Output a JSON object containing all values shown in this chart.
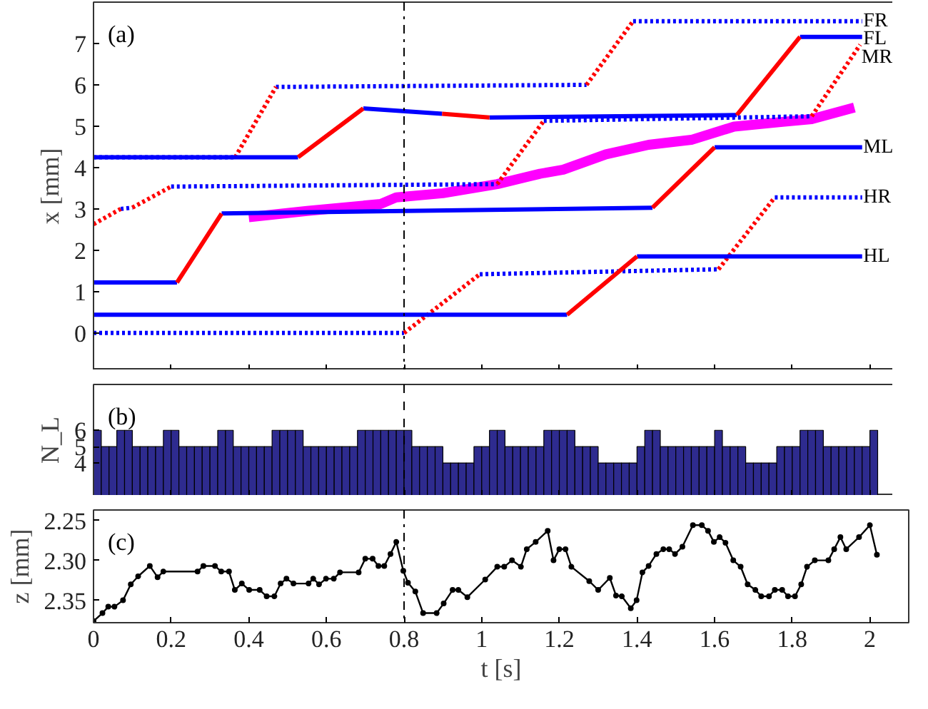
{
  "chart_data": [
    {
      "type": "line",
      "ylabel": "x [mm]",
      "annotations": [
        "(a)"
      ],
      "xlim": [
        0,
        2.1
      ],
      "ylim": [
        -0.9,
        8
      ],
      "xticks": [
        0,
        0.2,
        0.4,
        0.6,
        0.8,
        1,
        1.2,
        1.4,
        1.6,
        1.8,
        2
      ],
      "yticks": [
        0,
        1,
        2,
        3,
        4,
        5,
        6,
        7
      ],
      "tick_labels": "y",
      "ref_lines": [
        {
          "axis": "x",
          "value": 0.8,
          "color": "#000000",
          "line_style": "dashdot"
        }
      ],
      "series": [
        {
          "name": "FR",
          "color": "#0000ff",
          "line_style": "dotted",
          "x": [
            0,
            0.365,
            0.42,
            0.47,
            1.27,
            1.33,
            1.39,
            1.98
          ],
          "values": [
            4.25,
            4.25,
            null,
            5.95,
            6.0,
            null,
            7.54,
            7.54
          ]
        },
        {
          "color": "#ff0000",
          "line_style": "dotted",
          "x": [
            0.365,
            0.47,
            0.8,
            1.27,
            1.39
          ],
          "values": [
            4.25,
            5.95,
            null,
            6.0,
            7.54
          ]
        },
        {
          "name": "FL",
          "color": "#0000ff",
          "line_style": "solid",
          "x": [
            0,
            0.527,
            0.6,
            0.695,
            0.898,
            0.95,
            1.02,
            1.657,
            1.7,
            1.82,
            1.98
          ],
          "values": [
            4.25,
            4.25,
            null,
            5.43,
            5.3,
            null,
            5.21,
            5.27,
            null,
            7.16,
            7.16
          ]
        },
        {
          "color": "#ff0000",
          "line_style": "solid",
          "x": [
            0.527,
            0.695,
            0.8,
            0.898,
            1.02,
            1.3,
            1.657,
            1.82
          ],
          "values": [
            4.25,
            5.43,
            null,
            5.3,
            5.21,
            null,
            5.27,
            7.16
          ]
        },
        {
          "color": "#0000ff",
          "line_style": "dotted",
          "x": [
            0.07,
            0.1,
            0.15,
            0.2,
            1.04,
            1.1,
            1.16,
            1.85
          ],
          "values": [
            3.0,
            3.03,
            null,
            3.54,
            3.6,
            null,
            5.13,
            5.24
          ]
        },
        {
          "name": "MR",
          "color": "#ff0000",
          "line_style": "dotted",
          "x": [
            0,
            0.07,
            0.08,
            0.1,
            0.2,
            0.6,
            1.04,
            1.16,
            1.5,
            1.85,
            1.975
          ],
          "values": [
            2.63,
            3.0,
            null,
            3.03,
            3.54,
            null,
            3.6,
            5.13,
            null,
            5.24,
            6.97
          ]
        },
        {
          "name": "ML",
          "color": "#0000ff",
          "line_style": "solid",
          "x": [
            0,
            0.215,
            0.27,
            0.33,
            1.44,
            1.5,
            1.6,
            1.98
          ],
          "values": [
            1.22,
            1.22,
            null,
            2.89,
            3.03,
            null,
            4.49,
            4.49
          ]
        },
        {
          "color": "#ff0000",
          "line_style": "solid",
          "x": [
            0.215,
            0.33,
            0.9,
            1.44,
            1.6
          ],
          "values": [
            1.22,
            2.89,
            null,
            3.03,
            4.49
          ]
        },
        {
          "name": "HR",
          "color": "#0000ff",
          "line_style": "dotted",
          "x": [
            0,
            0.8,
            0.9,
            0.995,
            1.61,
            1.7,
            1.755,
            1.98
          ],
          "values": [
            0,
            0,
            null,
            1.42,
            1.54,
            null,
            3.28,
            3.28
          ]
        },
        {
          "color": "#ff0000",
          "line_style": "dotted",
          "x": [
            0.8,
            0.995,
            1.3,
            1.61,
            1.755
          ],
          "values": [
            0,
            1.42,
            null,
            1.54,
            3.28
          ]
        },
        {
          "name": "HL",
          "color": "#0000ff",
          "line_style": "solid",
          "x": [
            0,
            1.22,
            1.3,
            1.4,
            1.98
          ],
          "values": [
            0.44,
            0.44,
            null,
            1.85,
            1.85
          ]
        },
        {
          "color": "#ff0000",
          "line_style": "solid",
          "x": [
            1.22,
            1.4
          ],
          "values": [
            0.44,
            1.85
          ]
        },
        {
          "color": "#ff00ff",
          "line_style": "solid",
          "x": [
            0.4,
            0.55,
            0.74,
            0.78,
            0.9,
            1.04,
            1.15,
            1.21,
            1.32,
            1.43,
            1.54,
            1.65,
            1.77,
            1.85,
            1.96
          ],
          "values": [
            2.8,
            2.95,
            3.12,
            3.28,
            3.38,
            3.6,
            3.85,
            3.95,
            4.32,
            4.55,
            4.67,
            4.99,
            5.1,
            5.17,
            5.45
          ]
        }
      ]
    },
    {
      "type": "histogram",
      "ylabel": "N_L",
      "annotations": [
        "(b)"
      ],
      "xlim": [
        0,
        2.1
      ],
      "ylim": [
        2,
        8.8
      ],
      "xticks": [
        0,
        0.2,
        0.4,
        0.6,
        0.8,
        1,
        1.2,
        1.4,
        1.6,
        1.8,
        2
      ],
      "yticks": [
        4,
        5,
        6
      ],
      "tick_labels": "y",
      "color": "#2e2b8f",
      "ref_lines": [
        {
          "axis": "x",
          "value": 0.8,
          "color": "#000000",
          "line_style": "dashed"
        }
      ],
      "bins": [
        0,
        0.02,
        0.04,
        0.06,
        0.08,
        0.1,
        0.12,
        0.14,
        0.16,
        0.18,
        0.2,
        0.22,
        0.24,
        0.26,
        0.28,
        0.3,
        0.32,
        0.34,
        0.36,
        0.38,
        0.4,
        0.42,
        0.44,
        0.46,
        0.48,
        0.5,
        0.52,
        0.54,
        0.56,
        0.58,
        0.6,
        0.62,
        0.64,
        0.66,
        0.68,
        0.7,
        0.72,
        0.74,
        0.76,
        0.78,
        0.8,
        0.82,
        0.84,
        0.86,
        0.88,
        0.9,
        0.92,
        0.94,
        0.96,
        0.98,
        1.0,
        1.02,
        1.04,
        1.06,
        1.08,
        1.1,
        1.12,
        1.14,
        1.16,
        1.18,
        1.2,
        1.22,
        1.24,
        1.26,
        1.28,
        1.3,
        1.32,
        1.34,
        1.36,
        1.38,
        1.4,
        1.42,
        1.44,
        1.46,
        1.48,
        1.5,
        1.52,
        1.54,
        1.56,
        1.58,
        1.6,
        1.62,
        1.64,
        1.66,
        1.68,
        1.7,
        1.72,
        1.74,
        1.76,
        1.78,
        1.8,
        1.82,
        1.84,
        1.86,
        1.88,
        1.9,
        1.92,
        1.94,
        1.96,
        1.98,
        2.0,
        2.02
      ],
      "values": [
        6,
        5,
        5,
        6,
        6,
        5,
        5,
        5,
        5,
        6,
        6,
        5,
        5,
        5,
        5,
        5,
        6,
        6,
        5,
        5,
        5,
        5,
        5,
        6,
        6,
        6,
        6,
        5,
        5,
        5,
        5,
        5,
        5,
        5,
        6,
        6,
        6,
        6,
        6,
        6,
        6,
        5,
        5,
        5,
        5,
        4,
        4,
        4,
        4,
        5,
        5,
        6,
        6,
        5,
        5,
        5,
        5,
        5,
        6,
        6,
        6,
        6,
        5,
        5,
        5,
        4,
        4,
        4,
        4,
        4,
        5,
        6,
        6,
        5,
        5,
        5,
        5,
        5,
        5,
        5,
        6,
        5,
        5,
        5,
        4,
        4,
        4,
        4,
        5,
        5,
        5,
        6,
        6,
        6,
        5,
        5,
        5,
        5,
        5,
        5,
        6
      ]
    },
    {
      "type": "line",
      "xlabel": "t [s]",
      "ylabel": "z [mm]",
      "annotations": [
        "(c)"
      ],
      "xlim": [
        0,
        2.1
      ],
      "ylim": [
        2.378,
        2.237
      ],
      "xticks": [
        0,
        0.2,
        0.4,
        0.6,
        0.8,
        1,
        1.2,
        1.4,
        1.6,
        1.8,
        2
      ],
      "yticks": [
        2.25,
        {
          "value": 2.3,
          "label": "2.30"
        },
        2.35
      ],
      "marker": "circle",
      "ref_lines": [
        {
          "axis": "x",
          "value": 0.8,
          "color": "#000000",
          "line_style": "dashdot"
        }
      ],
      "series": [
        {
          "color": "#000000",
          "line_style": "solid",
          "x": [
            0,
            0.023,
            0.038,
            0.054,
            0.076,
            0.096,
            0.115,
            0.145,
            0.165,
            0.18,
            0.268,
            0.283,
            0.313,
            0.329,
            0.349,
            0.364,
            0.382,
            0.401,
            0.428,
            0.446,
            0.466,
            0.482,
            0.497,
            0.515,
            0.554,
            0.566,
            0.581,
            0.599,
            0.619,
            0.635,
            0.683,
            0.7,
            0.719,
            0.734,
            0.749,
            0.765,
            0.78,
            0.798,
            0.81,
            0.829,
            0.849,
            0.884,
            0.902,
            0.925,
            0.94,
            0.963,
            1.009,
            1.04,
            1.058,
            1.078,
            1.101,
            1.116,
            1.139,
            1.17,
            1.185,
            1.2,
            1.216,
            1.231,
            1.277,
            1.3,
            1.33,
            1.346,
            1.361,
            1.384,
            1.399,
            1.414,
            1.43,
            1.45,
            1.468,
            1.483,
            1.498,
            1.517,
            1.544,
            1.567,
            1.583,
            1.598,
            1.613,
            1.628,
            1.648,
            1.667,
            1.685,
            1.705,
            1.72,
            1.74,
            1.755,
            1.774,
            1.789,
            1.807,
            1.823,
            1.838,
            1.858,
            1.893,
            1.908,
            1.924,
            1.939,
            1.972,
            2.0,
            2.018
          ],
          "values": [
            2.376,
            2.366,
            2.358,
            2.358,
            2.35,
            2.33,
            2.32,
            2.307,
            2.321,
            2.314,
            2.314,
            2.307,
            2.307,
            2.314,
            2.314,
            2.337,
            2.329,
            2.337,
            2.337,
            2.345,
            2.345,
            2.329,
            2.323,
            2.329,
            2.329,
            2.323,
            2.33,
            2.323,
            2.323,
            2.315,
            2.315,
            2.298,
            2.298,
            2.307,
            2.307,
            2.292,
            2.277,
            2.313,
            2.328,
            2.339,
            2.366,
            2.366,
            2.354,
            2.337,
            2.337,
            2.346,
            2.324,
            2.308,
            2.308,
            2.3,
            2.308,
            2.286,
            2.277,
            2.263,
            2.3,
            2.286,
            2.286,
            2.308,
            2.326,
            2.337,
            2.322,
            2.344,
            2.345,
            2.36,
            2.35,
            2.315,
            2.307,
            2.292,
            2.286,
            2.286,
            2.292,
            2.283,
            2.256,
            2.256,
            2.263,
            2.277,
            2.271,
            2.278,
            2.3,
            2.308,
            2.33,
            2.337,
            2.345,
            2.345,
            2.337,
            2.337,
            2.345,
            2.345,
            2.33,
            2.308,
            2.3,
            2.3,
            2.286,
            2.271,
            2.286,
            2.271,
            2.256,
            2.293
          ]
        }
      ]
    }
  ]
}
